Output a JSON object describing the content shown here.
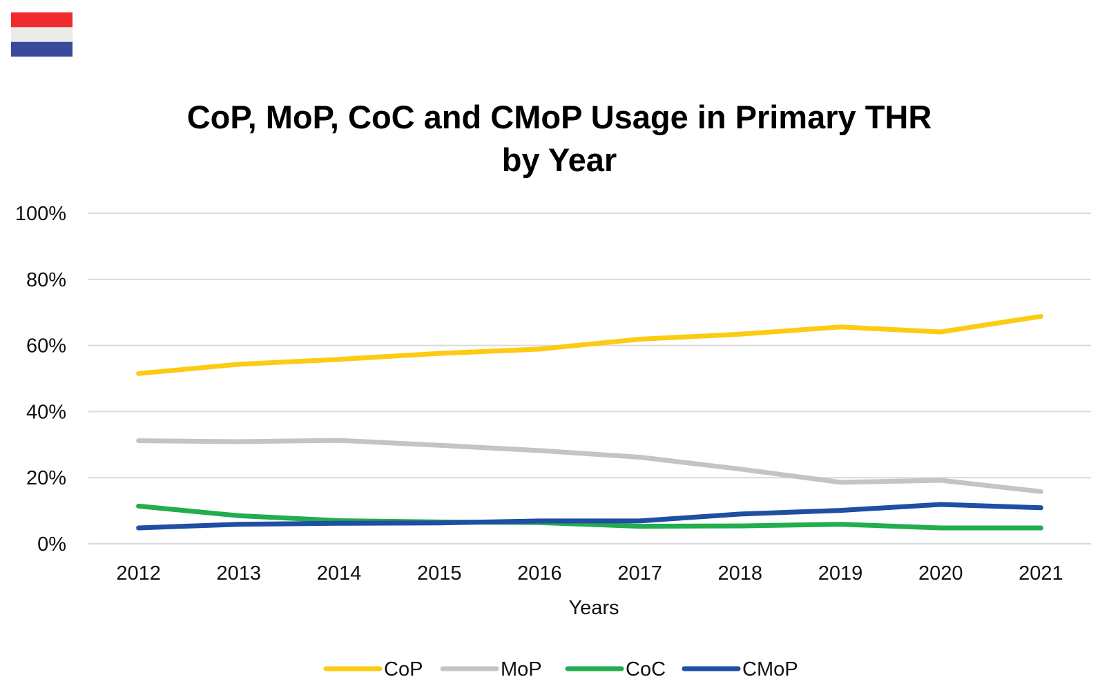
{
  "flag": {
    "name": "netherlands-flag",
    "stripes": [
      "#ef2b2d",
      "#eaeaea",
      "#3a4a9a"
    ]
  },
  "chart_data": {
    "type": "line",
    "title": "CoP, MoP, CoC and CMoP Usage in Primary THR by Year",
    "title_lines": [
      "CoP, MoP, CoC and CMoP Usage in Primary THR",
      "by Year"
    ],
    "xlabel": "Years",
    "ylabel": "",
    "categories": [
      "2012",
      "2013",
      "2014",
      "2015",
      "2016",
      "2017",
      "2018",
      "2019",
      "2020",
      "2021"
    ],
    "ylim": [
      0,
      100
    ],
    "yticks": [
      0,
      20,
      40,
      60,
      80,
      100
    ],
    "ytick_labels": [
      "0%",
      "20%",
      "40%",
      "60%",
      "80%",
      "100%"
    ],
    "grid": true,
    "legend_position": "bottom",
    "series": [
      {
        "name": "CoP",
        "color": "#fccb14",
        "values": [
          51.5,
          54.3,
          55.8,
          57.6,
          58.9,
          61.9,
          63.4,
          65.6,
          64.1,
          68.8
        ]
      },
      {
        "name": "MoP",
        "color": "#c4c4c4",
        "values": [
          31.2,
          30.9,
          31.3,
          29.8,
          28.2,
          26.2,
          22.6,
          18.6,
          19.2,
          15.8
        ]
      },
      {
        "name": "CoC",
        "color": "#22ad4e",
        "values": [
          11.4,
          8.5,
          7.0,
          6.6,
          6.4,
          5.3,
          5.4,
          5.9,
          4.8,
          4.8
        ]
      },
      {
        "name": "CMoP",
        "color": "#1f4ea3",
        "values": [
          4.8,
          5.9,
          6.2,
          6.3,
          6.9,
          6.9,
          9.0,
          10.1,
          11.9,
          10.9
        ]
      }
    ]
  }
}
